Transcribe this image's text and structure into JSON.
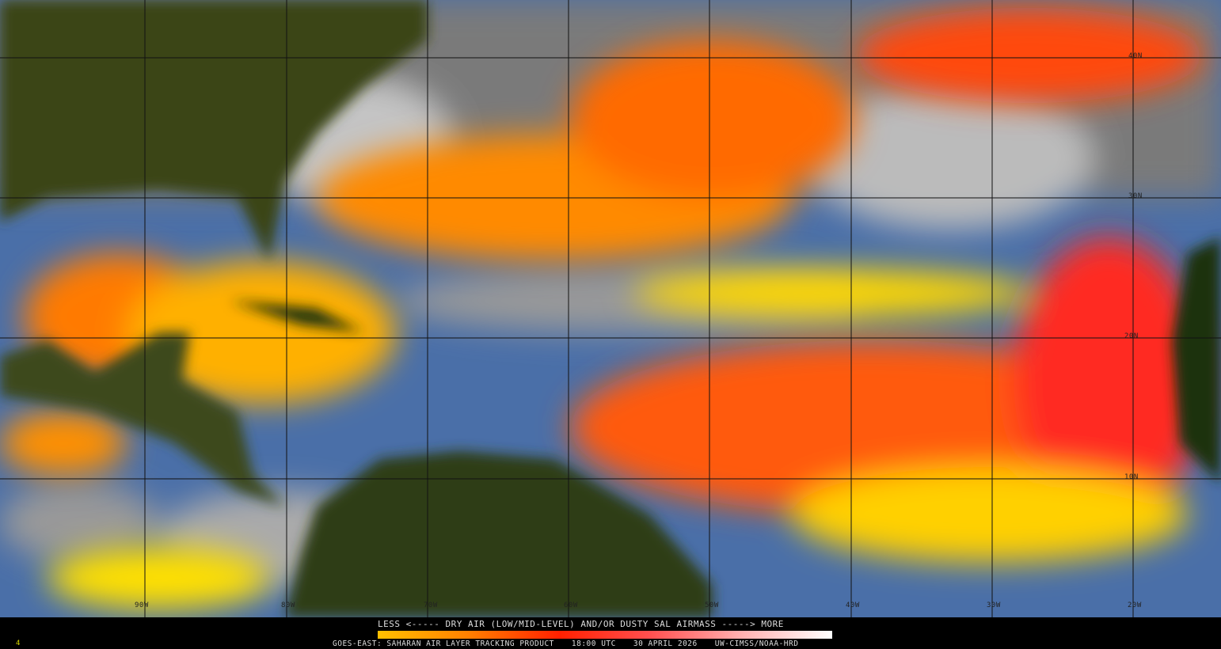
{
  "legend": {
    "title": "LESS <----- DRY AIR (LOW/MID-LEVEL) AND/OR DUSTY SAL AIRMASS -----> MORE",
    "colors": [
      "#ffc000",
      "#ff8000",
      "#ff2000",
      "#ff5050",
      "#ffb0b0",
      "#ffffff"
    ]
  },
  "footer": {
    "product": "GOES-EAST: SAHARAN AIR LAYER TRACKING PRODUCT",
    "time": "18:00 UTC",
    "date": "30 APRIL 2026",
    "credit": "UW-CIMSS/NOAA-HRD"
  },
  "frame_number": "4",
  "grid": {
    "latitudes": [
      "40N",
      "30N",
      "20N",
      "10N"
    ],
    "longitudes": [
      "90W",
      "80W",
      "70W",
      "60W",
      "50W",
      "40W",
      "30W",
      "20W"
    ]
  },
  "colors": {
    "land": "#2e3a12",
    "ocean": "#4a6fa8",
    "cloud": "#9a9a9a",
    "dust_low": "#ffe000",
    "dust_mid": "#ff7a00",
    "dust_high": "#ff2a10"
  }
}
